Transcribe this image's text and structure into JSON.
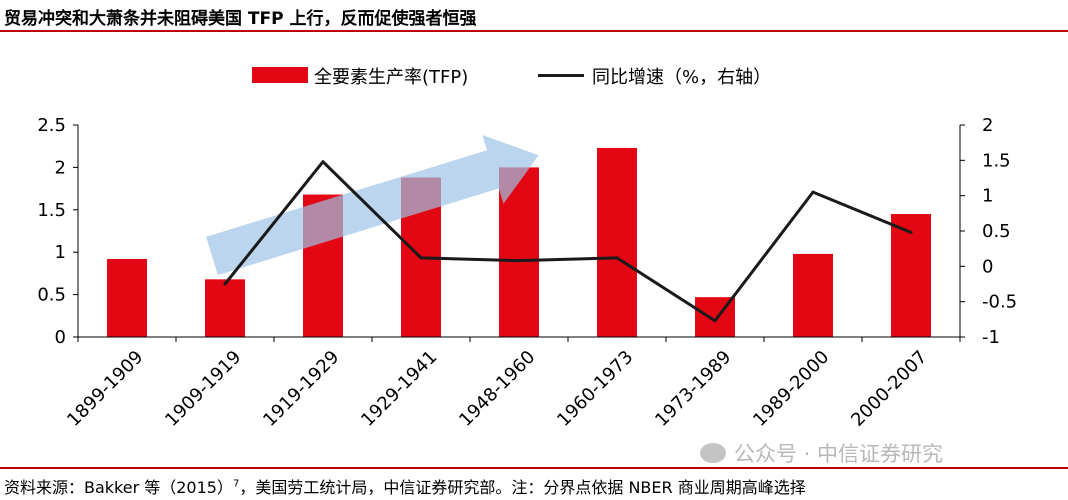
{
  "header": {
    "title": "贸易冲突和大萧条并未阻碍美国 TFP 上行，反而促使强者恒强"
  },
  "legend": {
    "bar_label": "全要素生产率(TFP)",
    "line_label": "同比增速（%，右轴）"
  },
  "footer": {
    "source_prefix": "资料来源：Bakker 等（2015）",
    "source_sup": "7",
    "source_suffix": "，美国劳工统计局，中信证券研究部。注：分界点依据 NBER 商业周期高峰选择",
    "watermark": "公众号 · 中信证券研究"
  },
  "colors": {
    "bar": "#e30613",
    "line": "#1a1a1a",
    "arrow": "#9dc3e6",
    "rule": "#c00000"
  },
  "chart_data": {
    "type": "bar",
    "categories": [
      "1899-1909",
      "1909-1919",
      "1919-1929",
      "1929-1941",
      "1948-1960",
      "1960-1973",
      "1973-1989",
      "1989-2000",
      "2000-2007"
    ],
    "series": [
      {
        "name": "全要素生产率(TFP)",
        "type": "bar",
        "axis": "left",
        "values": [
          0.92,
          0.68,
          1.68,
          1.88,
          2.0,
          2.23,
          0.47,
          0.98,
          1.45
        ]
      },
      {
        "name": "同比增速（%，右轴）",
        "type": "line",
        "axis": "right",
        "values": [
          null,
          -0.25,
          1.48,
          0.12,
          0.08,
          0.12,
          -0.77,
          1.05,
          0.48
        ]
      }
    ],
    "y_left": {
      "min": 0,
      "max": 2.5,
      "ticks": [
        "0",
        "0.5",
        "1",
        "1.5",
        "2",
        "2.5"
      ]
    },
    "y_right": {
      "min": -1,
      "max": 2,
      "ticks": [
        "-1",
        "-0.5",
        "0",
        "0.5",
        "1",
        "1.5",
        "2"
      ]
    },
    "grid": false,
    "legend_position": "top"
  }
}
